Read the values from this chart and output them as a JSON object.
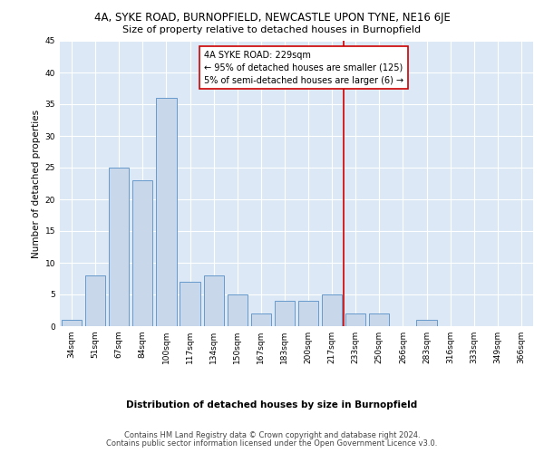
{
  "title": "4A, SYKE ROAD, BURNOPFIELD, NEWCASTLE UPON TYNE, NE16 6JE",
  "subtitle": "Size of property relative to detached houses in Burnopfield",
  "xlabel": "Distribution of detached houses by size in Burnopfield",
  "ylabel": "Number of detached properties",
  "categories": [
    "34sqm",
    "51sqm",
    "67sqm",
    "84sqm",
    "100sqm",
    "117sqm",
    "134sqm",
    "150sqm",
    "167sqm",
    "183sqm",
    "200sqm",
    "217sqm",
    "233sqm",
    "250sqm",
    "266sqm",
    "283sqm",
    "316sqm",
    "333sqm",
    "349sqm",
    "366sqm"
  ],
  "values": [
    1,
    8,
    25,
    23,
    36,
    7,
    8,
    5,
    2,
    4,
    4,
    5,
    2,
    2,
    0,
    1,
    0,
    0,
    0,
    0
  ],
  "bar_color": "#c8d8ea",
  "bar_edge_color": "#6699cc",
  "vline_color": "#cc0000",
  "annotation_text": "4A SYKE ROAD: 229sqm\n← 95% of detached houses are smaller (125)\n5% of semi-detached houses are larger (6) →",
  "annotation_box_color": "#cc0000",
  "background_color": "#dce8f5",
  "ylim": [
    0,
    45
  ],
  "yticks": [
    0,
    5,
    10,
    15,
    20,
    25,
    30,
    35,
    40,
    45
  ],
  "footer_line1": "Contains HM Land Registry data © Crown copyright and database right 2024.",
  "footer_line2": "Contains public sector information licensed under the Open Government Licence v3.0.",
  "title_fontsize": 8.5,
  "subtitle_fontsize": 8,
  "xlabel_fontsize": 7.5,
  "ylabel_fontsize": 7.5,
  "tick_fontsize": 6.5,
  "annotation_fontsize": 7,
  "footer_fontsize": 6
}
